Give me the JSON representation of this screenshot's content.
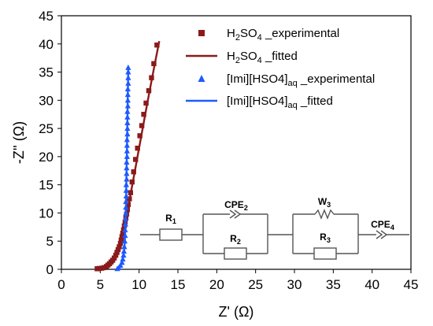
{
  "chart_data": {
    "type": "scatter",
    "xlabel": "Z' (Ω)",
    "ylabel": "-Z'' (Ω)",
    "xlim": [
      0,
      45
    ],
    "ylim": [
      0,
      45
    ],
    "x_ticks": [
      "0",
      "5",
      "10",
      "15",
      "20",
      "25",
      "30",
      "35",
      "40",
      "45"
    ],
    "y_ticks": [
      "0",
      "5",
      "10",
      "15",
      "20",
      "25",
      "30",
      "35",
      "40",
      "45"
    ],
    "legend_position": "top-right",
    "series": [
      {
        "name": "H2SO4 _experimental",
        "legend": {
          "pre": "H",
          "sub1": "2",
          "mid": "SO",
          "sub2": "4",
          "post": " _experimental"
        },
        "kind": "markers",
        "marker": "square",
        "color": "#8B1A1A",
        "points": [
          [
            4.6,
            0.1
          ],
          [
            4.9,
            0.15
          ],
          [
            5.2,
            0.2
          ],
          [
            5.5,
            0.3
          ],
          [
            5.8,
            0.5
          ],
          [
            6.0,
            0.75
          ],
          [
            6.2,
            1.0
          ],
          [
            6.4,
            1.3
          ],
          [
            6.6,
            1.6
          ],
          [
            6.8,
            2.0
          ],
          [
            7.0,
            2.5
          ],
          [
            7.15,
            3.0
          ],
          [
            7.3,
            3.5
          ],
          [
            7.45,
            4.0
          ],
          [
            7.6,
            4.6
          ],
          [
            7.7,
            5.2
          ],
          [
            7.8,
            5.8
          ],
          [
            7.9,
            6.4
          ],
          [
            8.0,
            7.0
          ],
          [
            8.1,
            7.7
          ],
          [
            8.2,
            8.4
          ],
          [
            8.3,
            9.1
          ],
          [
            8.4,
            9.8
          ],
          [
            8.5,
            10.6
          ],
          [
            8.6,
            11.5
          ],
          [
            8.75,
            12.5
          ],
          [
            8.9,
            13.6
          ],
          [
            9.1,
            15.5
          ],
          [
            9.3,
            17.3
          ],
          [
            9.55,
            19.5
          ],
          [
            9.8,
            21.5
          ],
          [
            10.1,
            23.7
          ],
          [
            10.35,
            25.5
          ],
          [
            10.6,
            27.5
          ],
          [
            10.9,
            29.5
          ],
          [
            11.25,
            31.7
          ],
          [
            11.6,
            34.0
          ],
          [
            11.9,
            36.5
          ],
          [
            12.3,
            39.8
          ]
        ]
      },
      {
        "name": "H2SO4 _fitted",
        "legend": {
          "pre": "H",
          "sub1": "2",
          "mid": "SO",
          "sub2": "4",
          "post": " _fitted"
        },
        "kind": "line",
        "color": "#8B1A1A",
        "points": [
          [
            4.5,
            0.0
          ],
          [
            5.0,
            0.15
          ],
          [
            5.5,
            0.35
          ],
          [
            6.0,
            0.8
          ],
          [
            6.5,
            1.5
          ],
          [
            7.0,
            2.5
          ],
          [
            7.4,
            3.8
          ],
          [
            7.8,
            5.5
          ],
          [
            8.1,
            7.5
          ],
          [
            8.4,
            9.6
          ],
          [
            8.7,
            11.8
          ],
          [
            9.1,
            14.8
          ],
          [
            9.6,
            18.5
          ],
          [
            10.2,
            23.0
          ],
          [
            10.8,
            27.6
          ],
          [
            11.4,
            32.0
          ],
          [
            12.0,
            36.3
          ],
          [
            12.6,
            40.5
          ]
        ]
      },
      {
        "name": "[Imi][HSO4]aq _experimental",
        "legend": {
          "pre": "[Imi][HSO4]",
          "sub1": "aq",
          "mid": "",
          "sub2": "",
          "post": " _experimental"
        },
        "kind": "markers",
        "marker": "triangle",
        "color": "#1E5AFF",
        "points": [
          [
            7.2,
            0.1
          ],
          [
            7.4,
            0.3
          ],
          [
            7.6,
            0.7
          ],
          [
            7.8,
            1.2
          ],
          [
            7.9,
            1.8
          ],
          [
            8.0,
            2.5
          ],
          [
            8.05,
            3.2
          ],
          [
            8.1,
            4.0
          ],
          [
            8.15,
            5.0
          ],
          [
            8.2,
            6.0
          ],
          [
            8.2,
            7.0
          ],
          [
            8.25,
            8.0
          ],
          [
            8.25,
            9.0
          ],
          [
            8.3,
            10.0
          ],
          [
            8.3,
            11.0
          ],
          [
            8.3,
            12.0
          ],
          [
            8.35,
            13.0
          ],
          [
            8.35,
            14.0
          ],
          [
            8.35,
            15.0
          ],
          [
            8.4,
            16.0
          ],
          [
            8.4,
            17.0
          ],
          [
            8.4,
            18.0
          ],
          [
            8.4,
            19.0
          ],
          [
            8.45,
            20.0
          ],
          [
            8.45,
            21.0
          ],
          [
            8.45,
            22.0
          ],
          [
            8.45,
            23.0
          ],
          [
            8.5,
            24.0
          ],
          [
            8.5,
            25.0
          ],
          [
            8.5,
            26.0
          ],
          [
            8.5,
            27.0
          ],
          [
            8.5,
            28.0
          ],
          [
            8.55,
            29.0
          ],
          [
            8.55,
            30.0
          ],
          [
            8.55,
            31.0
          ],
          [
            8.55,
            32.0
          ],
          [
            8.6,
            33.0
          ],
          [
            8.6,
            34.0
          ],
          [
            8.6,
            35.0
          ],
          [
            8.6,
            35.8
          ]
        ]
      },
      {
        "name": "[Imi][HSO4]aq _fitted",
        "legend": {
          "pre": "[Imi][HSO4]",
          "sub1": "aq",
          "mid": "",
          "sub2": "",
          "post": " _fitted"
        },
        "kind": "line",
        "color": "#1E5AFF",
        "points": [
          [
            7.1,
            0.0
          ],
          [
            7.4,
            0.3
          ],
          [
            7.7,
            0.9
          ],
          [
            7.9,
            1.8
          ],
          [
            8.05,
            3.0
          ],
          [
            8.15,
            4.5
          ],
          [
            8.2,
            6.0
          ],
          [
            8.3,
            10.0
          ],
          [
            8.35,
            15.0
          ],
          [
            8.42,
            20.0
          ],
          [
            8.48,
            25.0
          ],
          [
            8.53,
            30.0
          ],
          [
            8.6,
            35.5
          ]
        ]
      }
    ],
    "circuit": {
      "elements": [
        {
          "name": "R1",
          "pre": "R",
          "sub": "1"
        },
        {
          "name": "CPE2",
          "pre": "CPE",
          "sub": "2"
        },
        {
          "name": "R2",
          "pre": "R",
          "sub": "2"
        },
        {
          "name": "W3",
          "pre": "W",
          "sub": "3"
        },
        {
          "name": "R3",
          "pre": "R",
          "sub": "3"
        },
        {
          "name": "CPE4",
          "pre": "CPE",
          "sub": "4"
        }
      ]
    }
  }
}
